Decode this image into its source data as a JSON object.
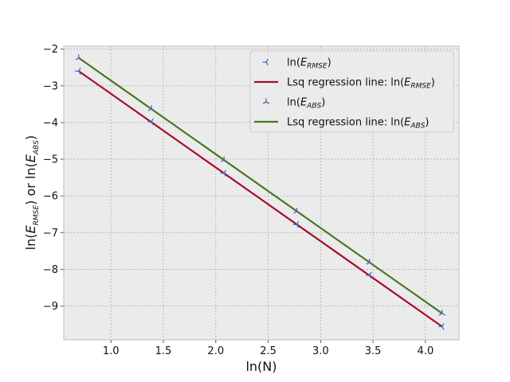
{
  "chart_data": {
    "type": "line",
    "xlabel": "ln(N)",
    "ylabel": {
      "prefix": "ln(",
      "sym1": "E",
      "sub1": "RMSE",
      "mid": ") or ln(",
      "sym2": "E",
      "sub2": "ABS",
      "suffix": ")"
    },
    "xlim": [
      0.55,
      4.32
    ],
    "ylim": [
      -9.92,
      -1.92
    ],
    "xticks": [
      "1.0",
      "1.5",
      "2.0",
      "2.5",
      "3.0",
      "3.5",
      "4.0"
    ],
    "yticks": [
      "-9",
      "-8",
      "-7",
      "-6",
      "-5",
      "-4",
      "-3",
      "-2"
    ],
    "grid": true,
    "legend_position": "top-right",
    "colors": {
      "rmse_marker": "#3a6fc4",
      "rmse_line": "#a50e2d",
      "abs_marker": "#5a5fb0",
      "abs_line": "#467821",
      "plot_bg": "#ebebeb",
      "grid": "#b0b0b0"
    },
    "series": [
      {
        "name": "ln(E_RMSE)",
        "legend": {
          "prefix": "ln(",
          "sym": "E",
          "sub": "RMSE",
          "suffix": ")"
        },
        "kind": "scatter",
        "marker": "tri_left",
        "x": [
          0.693,
          1.386,
          2.079,
          2.773,
          3.466,
          4.159
        ],
        "y": [
          -2.6,
          -3.98,
          -5.38,
          -6.78,
          -8.16,
          -9.56
        ]
      },
      {
        "name": "Lsq regression line: ln(E_RMSE)",
        "legend": {
          "prefix": "Lsq regression line: ln(",
          "sym": "E",
          "sub": "RMSE",
          "suffix": ")"
        },
        "kind": "line",
        "x": [
          0.693,
          4.159
        ],
        "y": [
          -2.6,
          -9.56
        ]
      },
      {
        "name": "ln(E_ABS)",
        "legend": {
          "prefix": "ln(",
          "sym": "E",
          "sub": "ABS",
          "suffix": ")"
        },
        "kind": "scatter",
        "marker": "tri_up",
        "x": [
          0.693,
          1.386,
          2.079,
          2.773,
          3.466,
          4.159
        ],
        "y": [
          -2.24,
          -3.63,
          -5.02,
          -6.42,
          -7.81,
          -9.2
        ]
      },
      {
        "name": "Lsq regression line: ln(E_ABS)",
        "legend": {
          "prefix": "Lsq regression line: ln(",
          "sym": "E",
          "sub": "ABS",
          "suffix": ")"
        },
        "kind": "line",
        "x": [
          0.693,
          4.159
        ],
        "y": [
          -2.24,
          -9.2
        ]
      }
    ]
  }
}
